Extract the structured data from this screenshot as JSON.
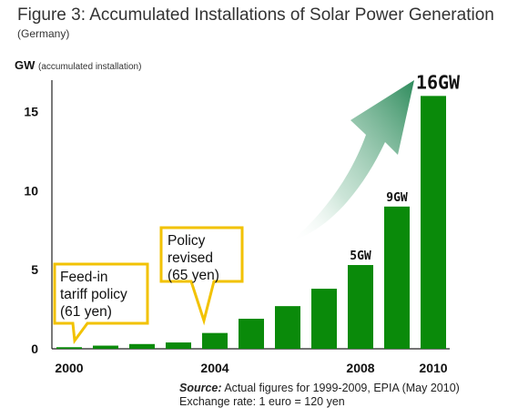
{
  "header": {
    "title": "Figure 3: Accumulated Installations of Solar Power Generation",
    "subtitle": "(Germany)"
  },
  "axis": {
    "y_unit": "GW",
    "y_unit_note": "(accumulated installation)"
  },
  "source": {
    "label": "Source:",
    "text": " Actual figures for 1999-2009, EPIA (May 2010)",
    "line2": "Exchange rate: 1 euro = 120 yen"
  },
  "callouts": [
    {
      "lines": [
        "Feed-in",
        "tariff policy",
        "(61 yen)"
      ]
    },
    {
      "lines": [
        "Policy",
        "revised",
        "(65 yen)"
      ]
    }
  ],
  "colors": {
    "bar": "#0a8a0a",
    "callout_border": "#f2c200",
    "arrow": "#3f9a6a"
  },
  "chart_data": {
    "type": "bar",
    "categories": [
      "2000",
      "2001",
      "2002",
      "2003",
      "2004",
      "2005",
      "2006",
      "2007",
      "2008",
      "2009",
      "2010"
    ],
    "values": [
      0.1,
      0.2,
      0.3,
      0.4,
      1.0,
      1.9,
      2.7,
      3.8,
      5.3,
      9.0,
      16.0
    ],
    "ylim": [
      0,
      17
    ],
    "yticks": [
      0,
      5,
      10,
      15
    ],
    "xtick_labels": {
      "0": "2000",
      "4": "2004",
      "8": "2008",
      "10": "2010"
    },
    "data_labels": {
      "8": "5GW",
      "9": "9GW",
      "10": "16GW"
    }
  }
}
